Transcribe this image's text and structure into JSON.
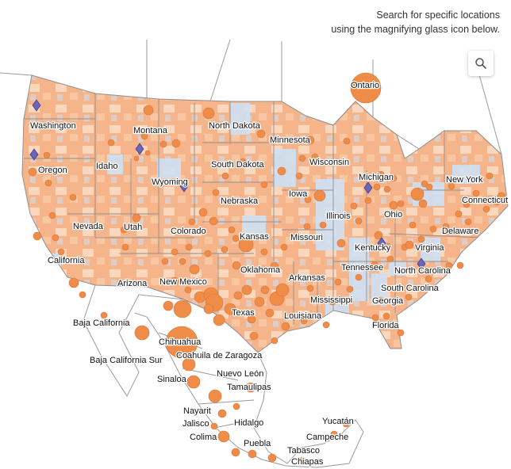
{
  "instructions": {
    "line1": "Search for specific locations",
    "line2": "using the magnifying glass icon below."
  },
  "search": {
    "icon": "search-icon"
  },
  "colors": {
    "land_dominant": "#f6b48a",
    "land_light": "#fbd7bd",
    "land_blue": "#cfe0f3",
    "circle_fill": "#ef8d48",
    "diamond_fill": "#6b67b8",
    "outside_land": "#ffffff",
    "boundary": "#8f8f8f"
  },
  "labels": [
    "Washington",
    "Montana",
    "North Dakota",
    "Minnesota",
    "Oregon",
    "Idaho",
    "South Dakota",
    "Wisconsin",
    "Michigan",
    "New York",
    "Wyoming",
    "Nebraska",
    "Iowa",
    "Connecticut",
    "Illinois",
    "Ohio",
    "Nevada",
    "Utah",
    "Colorado",
    "Kansas",
    "Missouri",
    "Delaware",
    "California",
    "Kentucky",
    "Virginia",
    "Oklahoma",
    "Tennessee",
    "North Carolina",
    "Arizona",
    "New Mexico",
    "Arkansas",
    "South Carolina",
    "Mississippi",
    "Georgia",
    "Texas",
    "Louisiana",
    "Florida",
    "Baja California",
    "Chihuahua",
    "Coahuila de Zaragoza",
    "Baja California Sur",
    "Nuevo León",
    "Sinaloa",
    "Tamaulipas",
    "Nayarit",
    "Jalisco",
    "Hidalgo",
    "Yucatán",
    "Colima",
    "Campeche",
    "Puebla",
    "Tabasco",
    "Chiapas",
    "Ontario"
  ]
}
